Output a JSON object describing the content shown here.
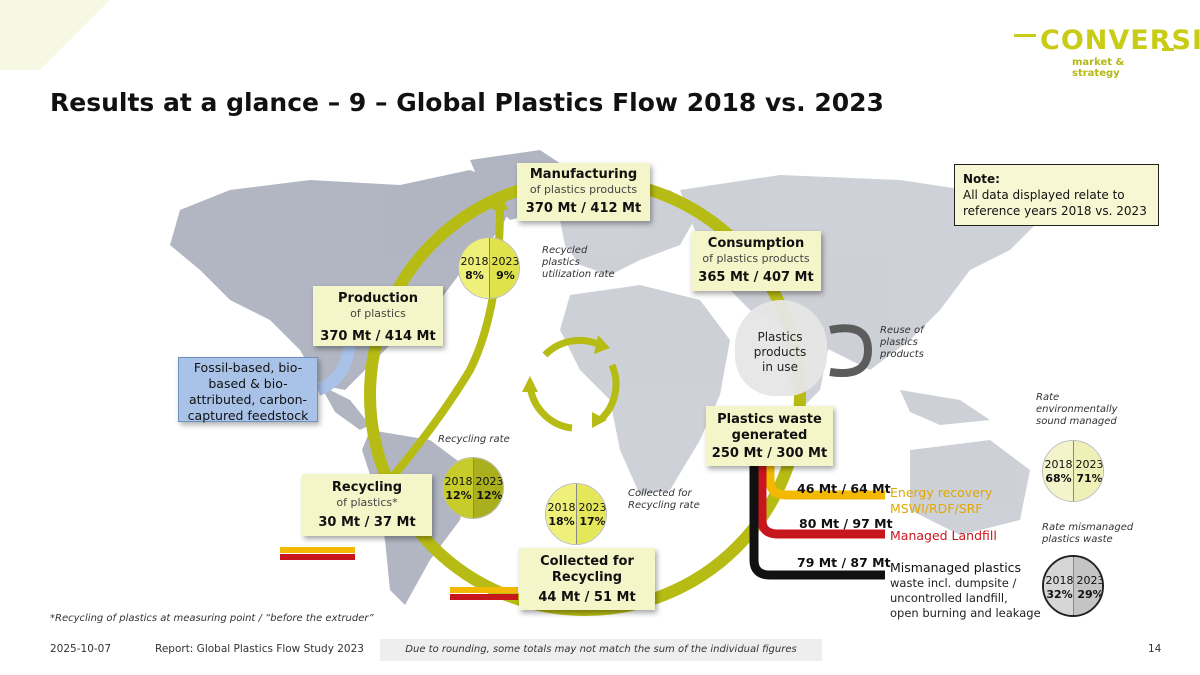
{
  "brand": {
    "name": "CONVERSIO",
    "tagline": "market & strategy",
    "accent_color": "#c9cc14"
  },
  "title": "Results at a glance – 9 – Global Plastics Flow 2018 vs. 2023",
  "note": {
    "title": "Note:",
    "text": "All data displayed relate to reference years 2018 vs. 2023"
  },
  "feedstock": {
    "line1": "Fossil-based, bio-",
    "line2": "based & bio-",
    "line3": "attributed, carbon-",
    "line4": "captured feedstock"
  },
  "stages": {
    "manufacturing": {
      "title": "Manufacturing",
      "subtitle": "of plastics products",
      "value": "370 Mt / 412 Mt"
    },
    "consumption": {
      "title": "Consumption",
      "subtitle": "of plastics products",
      "value": "365 Mt  / 407 Mt"
    },
    "production": {
      "title": "Production",
      "subtitle": "of plastics",
      "value": "370 Mt / 414 Mt"
    },
    "waste": {
      "title_line1": "Plastics waste",
      "title_line2": "generated",
      "value": "250 Mt / 300 Mt"
    },
    "recycling": {
      "title": "Recycling",
      "subtitle": "of plastics*",
      "value": "30 Mt / 37 Mt"
    },
    "collected": {
      "title_line1": "Collected for",
      "title_line2": "Recycling",
      "value": "44 Mt / 51 Mt"
    }
  },
  "in_use": {
    "line1": "Plastics",
    "line2": "products",
    "line3": "in use"
  },
  "reuse_label": {
    "line1": "Reuse of",
    "line2": "plastics",
    "line3": "products"
  },
  "rates": {
    "recycled_utilization": {
      "label_line1": "Recycled",
      "label_line2": "plastics",
      "label_line3": "utilization rate",
      "year1": "2018",
      "year2": "2023",
      "value1": "8%",
      "value2": "9%",
      "color1": "#eef07a",
      "color2": "#dfe24a"
    },
    "recycling_rate": {
      "label": "Recycling rate",
      "year1": "2018",
      "year2": "2023",
      "value1": "12%",
      "value2": "12%",
      "color1": "#c8cc2a",
      "color2": "#aab01d"
    },
    "collected_rate": {
      "label_line1": "Collected for",
      "label_line2": "Recycling rate",
      "year1": "2018",
      "year2": "2023",
      "value1": "18%",
      "value2": "17%",
      "color1": "#eef07a",
      "color2": "#e4e75a"
    },
    "env_sound": {
      "label_line1": "Rate",
      "label_line2": "environmentally",
      "label_line3": "sound managed",
      "year1": "2018",
      "year2": "2023",
      "value1": "68%",
      "value2": "71%",
      "color1": "#f3f4c9",
      "color2": "#eef0b7"
    },
    "mismanaged": {
      "label_line1": "Rate mismanaged",
      "label_line2": "plastics waste",
      "year1": "2018",
      "year2": "2023",
      "value1": "32%",
      "value2": "29%",
      "color1": "#d6d6d6",
      "color2": "#c4c4c4"
    }
  },
  "waste_flows": {
    "energy": {
      "value": "46 Mt / 64 Mt",
      "label_line1": "Energy recovery",
      "label_line2": "MSWI/RDF/SRF",
      "color": "#f3b800"
    },
    "landfill": {
      "value": "80 Mt / 97 Mt",
      "label": "Managed Landfill",
      "color": "#c8161d"
    },
    "mismanaged": {
      "value": "79 Mt / 87 Mt",
      "label": "Mismanaged plastics",
      "sub_line1": "waste incl. dumpsite /",
      "sub_line2": "uncontrolled landfill,",
      "sub_line3": "open burning and leakage",
      "color": "#111111"
    }
  },
  "footnote": "*Recycling of plastics at measuring point / “before the extruder”",
  "footer": {
    "date": "2025-10-07",
    "report": "Report: Global Plastics Flow Study 2023",
    "disclaimer": "Due to rounding, some totals may not match the sum of the individual figures",
    "page": "14"
  }
}
